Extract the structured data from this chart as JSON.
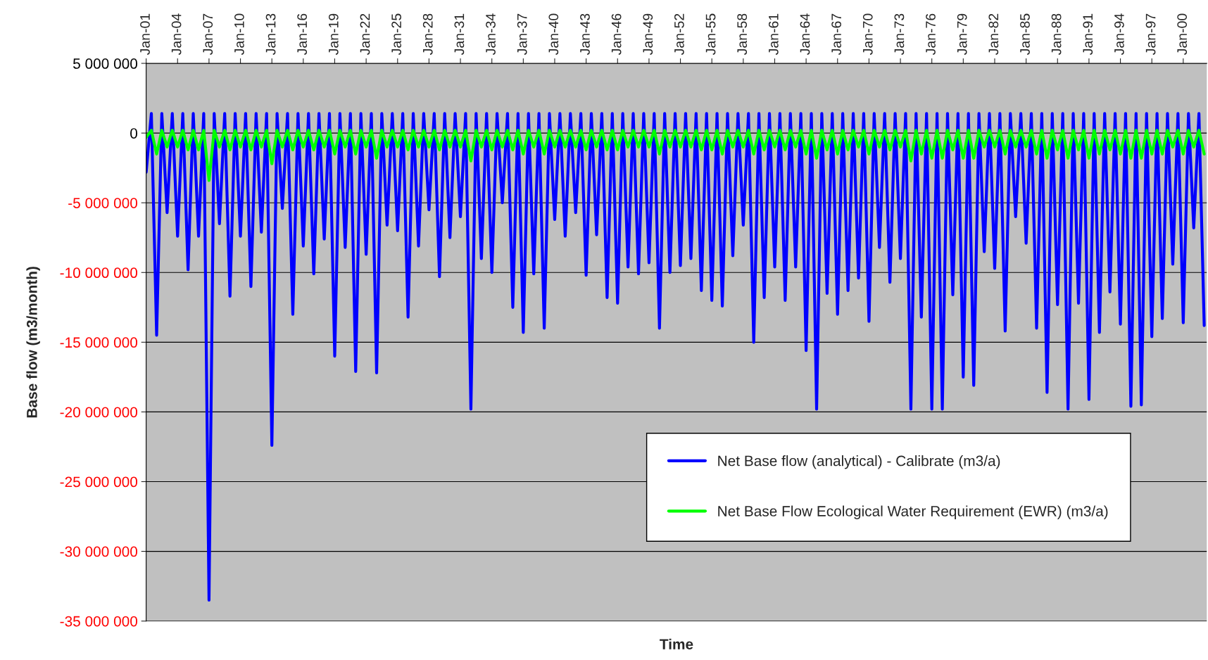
{
  "chart_data": {
    "type": "line",
    "xlabel": "Time",
    "ylabel": "Base flow (m3/month)",
    "x": [
      "1901-01",
      "1901-07",
      "1902-01",
      "1902-07",
      "1903-01",
      "1903-07",
      "1904-01",
      "1904-07",
      "1905-01",
      "1905-07",
      "1906-01",
      "1906-07",
      "1907-01",
      "1907-07",
      "1908-01",
      "1908-07",
      "1909-01",
      "1909-07",
      "1910-01",
      "1910-07",
      "1911-01",
      "1911-07",
      "1912-01",
      "1912-07",
      "1913-01",
      "1913-07",
      "1914-01",
      "1914-07",
      "1915-01",
      "1915-07",
      "1916-01",
      "1916-07",
      "1917-01",
      "1917-07",
      "1918-01",
      "1918-07",
      "1919-01",
      "1919-07",
      "1920-01",
      "1920-07",
      "1921-01",
      "1921-07",
      "1922-01",
      "1922-07",
      "1923-01",
      "1923-07",
      "1924-01",
      "1924-07",
      "1925-01",
      "1925-07",
      "1926-01",
      "1926-07",
      "1927-01",
      "1927-07",
      "1928-01",
      "1928-07",
      "1929-01",
      "1929-07",
      "1930-01",
      "1930-07",
      "1931-01",
      "1931-07",
      "1932-01",
      "1932-07",
      "1933-01",
      "1933-07",
      "1934-01",
      "1934-07",
      "1935-01",
      "1935-07",
      "1936-01",
      "1936-07",
      "1937-01",
      "1937-07",
      "1938-01",
      "1938-07",
      "1939-01",
      "1939-07",
      "1940-01",
      "1940-07",
      "1941-01",
      "1941-07",
      "1942-01",
      "1942-07",
      "1943-01",
      "1943-07",
      "1944-01",
      "1944-07",
      "1945-01",
      "1945-07",
      "1946-01",
      "1946-07",
      "1947-01",
      "1947-07",
      "1948-01",
      "1948-07",
      "1949-01",
      "1949-07",
      "1950-01",
      "1950-07",
      "1951-01",
      "1951-07",
      "1952-01",
      "1952-07",
      "1953-01",
      "1953-07",
      "1954-01",
      "1954-07",
      "1955-01",
      "1955-07",
      "1956-01",
      "1956-07",
      "1957-01",
      "1957-07",
      "1958-01",
      "1958-07",
      "1959-01",
      "1959-07",
      "1960-01",
      "1960-07",
      "1961-01",
      "1961-07",
      "1962-01",
      "1962-07",
      "1963-01",
      "1963-07",
      "1964-01",
      "1964-07",
      "1965-01",
      "1965-07",
      "1966-01",
      "1966-07",
      "1967-01",
      "1967-07",
      "1968-01",
      "1968-07",
      "1969-01",
      "1969-07",
      "1970-01",
      "1970-07",
      "1971-01",
      "1971-07",
      "1972-01",
      "1972-07",
      "1973-01",
      "1973-07",
      "1974-01",
      "1974-07",
      "1975-01",
      "1975-07",
      "1976-01",
      "1976-07",
      "1977-01",
      "1977-07",
      "1978-01",
      "1978-07",
      "1979-01",
      "1979-07",
      "1980-01",
      "1980-07",
      "1981-01",
      "1981-07",
      "1982-01",
      "1982-07",
      "1983-01",
      "1983-07",
      "1984-01",
      "1984-07",
      "1985-01",
      "1985-07",
      "1986-01",
      "1986-07",
      "1987-01",
      "1987-07",
      "1988-01",
      "1988-07",
      "1989-01",
      "1989-07",
      "1990-01",
      "1990-07",
      "1991-01",
      "1991-07",
      "1992-01",
      "1992-07",
      "1993-01",
      "1993-07",
      "1994-01",
      "1994-07",
      "1995-01",
      "1995-07",
      "1996-01",
      "1996-07",
      "1997-01",
      "1997-07",
      "1998-01",
      "1998-07",
      "1999-01",
      "1999-07",
      "2000-01",
      "2000-07",
      "2001-01",
      "2001-07",
      "2002-01"
    ],
    "series": [
      {
        "name": "Net Base flow (analytical) - Calibrate (m3/a)",
        "color": "#0000ff",
        "values": [
          -2800000,
          1400000,
          -14500000,
          1400000,
          -5700000,
          1400000,
          -7400000,
          1400000,
          -9800000,
          1400000,
          -7400000,
          1400000,
          -33500000,
          1400000,
          -6500000,
          1400000,
          -11700000,
          1400000,
          -7400000,
          1400000,
          -11000000,
          1400000,
          -7100000,
          1400000,
          -22400000,
          1400000,
          -5400000,
          1400000,
          -13000000,
          1400000,
          -8100000,
          1400000,
          -10100000,
          1400000,
          -7600000,
          1400000,
          -16000000,
          1400000,
          -8200000,
          1400000,
          -17100000,
          1400000,
          -8700000,
          1400000,
          -17200000,
          1400000,
          -6600000,
          1400000,
          -7000000,
          1400000,
          -13200000,
          1400000,
          -8100000,
          1400000,
          -5500000,
          1400000,
          -10300000,
          1400000,
          -7500000,
          1400000,
          -6000000,
          1400000,
          -19800000,
          1400000,
          -9000000,
          1400000,
          -10000000,
          1400000,
          -5000000,
          1400000,
          -12500000,
          1400000,
          -14300000,
          1400000,
          -10100000,
          1400000,
          -14000000,
          1400000,
          -6200000,
          1400000,
          -7400000,
          1400000,
          -5700000,
          1400000,
          -10200000,
          1400000,
          -7300000,
          1400000,
          -11800000,
          1400000,
          -12200000,
          1400000,
          -9600000,
          1400000,
          -10100000,
          1400000,
          -9300000,
          1400000,
          -14000000,
          1400000,
          -10000000,
          1400000,
          -9500000,
          1400000,
          -9000000,
          1400000,
          -11300000,
          1400000,
          -12000000,
          1400000,
          -12400000,
          1400000,
          -8800000,
          1400000,
          -6600000,
          1400000,
          -15000000,
          1400000,
          -11800000,
          1400000,
          -9600000,
          1400000,
          -12000000,
          1400000,
          -9600000,
          1400000,
          -15600000,
          1400000,
          -19800000,
          1400000,
          -11500000,
          1400000,
          -13000000,
          1400000,
          -11300000,
          1400000,
          -10400000,
          1400000,
          -13500000,
          1400000,
          -8200000,
          1400000,
          -10700000,
          1400000,
          -9000000,
          1400000,
          -19800000,
          1400000,
          -13200000,
          1400000,
          -19800000,
          1400000,
          -19800000,
          1400000,
          -11600000,
          1400000,
          -17500000,
          1400000,
          -18100000,
          1400000,
          -8500000,
          1400000,
          -9700000,
          1400000,
          -14200000,
          1400000,
          -6000000,
          1400000,
          -7900000,
          1400000,
          -14000000,
          1400000,
          -18600000,
          1400000,
          -12300000,
          1400000,
          -19800000,
          1400000,
          -12200000,
          1400000,
          -19100000,
          1400000,
          -14300000,
          1400000,
          -11400000,
          1400000,
          -13700000,
          1400000,
          -19600000,
          1400000,
          -19500000,
          1400000,
          -14600000,
          1400000,
          -13300000,
          1400000,
          -9400000,
          1400000,
          -13600000,
          1400000,
          -6800000,
          1400000,
          -13800000
        ]
      },
      {
        "name": "Net Base Flow Ecological Water Requirement (EWR) (m3/a)",
        "color": "#00ff00",
        "values": [
          -300000,
          200000,
          -1500000,
          200000,
          -1000000,
          200000,
          -1000000,
          200000,
          -1200000,
          200000,
          -1200000,
          200000,
          -3400000,
          200000,
          -1000000,
          200000,
          -1200000,
          200000,
          -1000000,
          200000,
          -1200000,
          200000,
          -1000000,
          200000,
          -2200000,
          200000,
          -1000000,
          200000,
          -1200000,
          200000,
          -1000000,
          200000,
          -1200000,
          200000,
          -1000000,
          200000,
          -1500000,
          200000,
          -1000000,
          200000,
          -1500000,
          200000,
          -1000000,
          200000,
          -1800000,
          200000,
          -1000000,
          200000,
          -1000000,
          200000,
          -1200000,
          200000,
          -1000000,
          200000,
          -1000000,
          200000,
          -1200000,
          200000,
          -1000000,
          200000,
          -1000000,
          200000,
          -2000000,
          200000,
          -1000000,
          200000,
          -1200000,
          200000,
          -1000000,
          200000,
          -1200000,
          200000,
          -1500000,
          200000,
          -1000000,
          200000,
          -1500000,
          200000,
          -1000000,
          200000,
          -1000000,
          200000,
          -1000000,
          200000,
          -1200000,
          200000,
          -1000000,
          200000,
          -1200000,
          200000,
          -1200000,
          200000,
          -1000000,
          200000,
          -1000000,
          200000,
          -1000000,
          200000,
          -1500000,
          200000,
          -1000000,
          200000,
          -1000000,
          200000,
          -1000000,
          200000,
          -1200000,
          200000,
          -1200000,
          200000,
          -1500000,
          200000,
          -1000000,
          200000,
          -1000000,
          200000,
          -1500000,
          200000,
          -1200000,
          200000,
          -1000000,
          200000,
          -1200000,
          200000,
          -1000000,
          200000,
          -1500000,
          200000,
          -1800000,
          200000,
          -1200000,
          200000,
          -1500000,
          200000,
          -1200000,
          200000,
          -1000000,
          200000,
          -1500000,
          200000,
          -1000000,
          200000,
          -1200000,
          200000,
          -1000000,
          200000,
          -2000000,
          200000,
          -1500000,
          200000,
          -1800000,
          200000,
          -1800000,
          200000,
          -1200000,
          200000,
          -1800000,
          200000,
          -1800000,
          200000,
          -1000000,
          200000,
          -1000000,
          200000,
          -1500000,
          200000,
          -1000000,
          200000,
          -1000000,
          200000,
          -1500000,
          200000,
          -1800000,
          200000,
          -1200000,
          200000,
          -1800000,
          200000,
          -1200000,
          200000,
          -1800000,
          200000,
          -1500000,
          200000,
          -1200000,
          200000,
          -1500000,
          200000,
          -1800000,
          200000,
          -1800000,
          200000,
          -1500000,
          200000,
          -1500000,
          200000,
          -1000000,
          200000,
          -1500000,
          200000,
          -1000000,
          200000,
          -1500000
        ]
      }
    ],
    "xlim": [
      "1901-01",
      "2002-04"
    ],
    "xticks": [
      {
        "value": "1901-01",
        "label": "Jan-01"
      },
      {
        "value": "1904-01",
        "label": "Jan-04"
      },
      {
        "value": "1907-01",
        "label": "Jan-07"
      },
      {
        "value": "1910-01",
        "label": "Jan-10"
      },
      {
        "value": "1913-01",
        "label": "Jan-13"
      },
      {
        "value": "1916-01",
        "label": "Jan-16"
      },
      {
        "value": "1919-01",
        "label": "Jan-19"
      },
      {
        "value": "1922-01",
        "label": "Jan-22"
      },
      {
        "value": "1925-01",
        "label": "Jan-25"
      },
      {
        "value": "1928-01",
        "label": "Jan-28"
      },
      {
        "value": "1931-01",
        "label": "Jan-31"
      },
      {
        "value": "1934-01",
        "label": "Jan-34"
      },
      {
        "value": "1937-01",
        "label": "Jan-37"
      },
      {
        "value": "1940-01",
        "label": "Jan-40"
      },
      {
        "value": "1943-01",
        "label": "Jan-43"
      },
      {
        "value": "1946-01",
        "label": "Jan-46"
      },
      {
        "value": "1949-01",
        "label": "Jan-49"
      },
      {
        "value": "1952-01",
        "label": "Jan-52"
      },
      {
        "value": "1955-01",
        "label": "Jan-55"
      },
      {
        "value": "1958-01",
        "label": "Jan-58"
      },
      {
        "value": "1961-01",
        "label": "Jan-61"
      },
      {
        "value": "1964-01",
        "label": "Jan-64"
      },
      {
        "value": "1967-01",
        "label": "Jan-67"
      },
      {
        "value": "1970-01",
        "label": "Jan-70"
      },
      {
        "value": "1973-01",
        "label": "Jan-73"
      },
      {
        "value": "1976-01",
        "label": "Jan-76"
      },
      {
        "value": "1979-01",
        "label": "Jan-79"
      },
      {
        "value": "1982-01",
        "label": "Jan-82"
      },
      {
        "value": "1985-01",
        "label": "Jan-85"
      },
      {
        "value": "1988-01",
        "label": "Jan-88"
      },
      {
        "value": "1991-01",
        "label": "Jan-91"
      },
      {
        "value": "1994-01",
        "label": "Jan-94"
      },
      {
        "value": "1997-01",
        "label": "Jan-97"
      },
      {
        "value": "2000-01",
        "label": "Jan-00"
      }
    ],
    "ylim": [
      -35000000,
      5000000
    ],
    "yticks": [
      {
        "value": 5000000,
        "label": "5 000 000"
      },
      {
        "value": 0,
        "label": "0"
      },
      {
        "value": -5000000,
        "label": "-5 000 000"
      },
      {
        "value": -10000000,
        "label": "-10 000 000"
      },
      {
        "value": -15000000,
        "label": "-15 000 000"
      },
      {
        "value": -20000000,
        "label": "-20 000 000"
      },
      {
        "value": -25000000,
        "label": "-25 000 000"
      },
      {
        "value": -30000000,
        "label": "-30 000 000"
      },
      {
        "value": -35000000,
        "label": "-35 000 000"
      }
    ],
    "grid": "y",
    "legend": "bottom right",
    "marker": "none",
    "line_style": "solid"
  }
}
